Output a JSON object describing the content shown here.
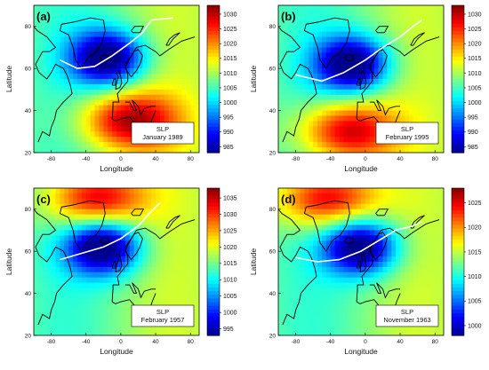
{
  "chart_data": [
    {
      "type": "heatmap",
      "panel_label": "(a)",
      "annotation": [
        "SLP",
        "January 1989"
      ],
      "xlabel": "Longitude",
      "ylabel": "Latitude",
      "x_ticks": [
        "-80",
        "-40",
        "0",
        "40",
        "80"
      ],
      "y_ticks": [
        "20",
        "40",
        "60",
        "80"
      ],
      "xlim": [
        -100,
        90
      ],
      "ylim": [
        20,
        90
      ],
      "colorbar": {
        "ticks": [
          1030,
          1025,
          1020,
          1015,
          1010,
          1005,
          1000,
          995,
          990,
          985
        ],
        "range": [
          983,
          1033
        ]
      },
      "low_center": {
        "lon": -15,
        "lat": 65
      },
      "high_center": {
        "lon": 10,
        "lat": 35
      },
      "jet_axis": [
        [
          -70,
          64
        ],
        [
          -50,
          60
        ],
        [
          -30,
          61
        ],
        [
          -10,
          66
        ],
        [
          10,
          72
        ],
        [
          25,
          77
        ],
        [
          35,
          83
        ],
        [
          60,
          84
        ]
      ]
    },
    {
      "type": "heatmap",
      "panel_label": "(b)",
      "annotation": [
        "SLP",
        "February 1995"
      ],
      "xlabel": "Longitude",
      "ylabel": "Latitude",
      "x_ticks": [
        "-80",
        "-40",
        "0",
        "40",
        "80"
      ],
      "y_ticks": [
        "20",
        "40",
        "60",
        "80"
      ],
      "xlim": [
        -100,
        90
      ],
      "ylim": [
        20,
        90
      ],
      "colorbar": {
        "ticks": [
          1030,
          1025,
          1020,
          1015,
          1010,
          1005,
          1000,
          995,
          990,
          985
        ],
        "range": [
          983,
          1033
        ]
      },
      "low_center": {
        "lon": -15,
        "lat": 62
      },
      "high_center": {
        "lon": -20,
        "lat": 30
      },
      "jet_axis": [
        [
          -80,
          57
        ],
        [
          -50,
          54
        ],
        [
          -25,
          58
        ],
        [
          0,
          64
        ],
        [
          20,
          70
        ],
        [
          40,
          75
        ],
        [
          55,
          80
        ],
        [
          65,
          83
        ]
      ]
    },
    {
      "type": "heatmap",
      "panel_label": "(c)",
      "annotation": [
        "SLP",
        "February 1957"
      ],
      "xlabel": "Longitude",
      "ylabel": "Latitude",
      "x_ticks": [
        "-80",
        "-40",
        "0",
        "40",
        "80"
      ],
      "y_ticks": [
        "20",
        "40",
        "60",
        "80"
      ],
      "xlim": [
        -100,
        90
      ],
      "ylim": [
        20,
        90
      ],
      "colorbar": {
        "ticks": [
          1035,
          1030,
          1025,
          1020,
          1015,
          1010,
          1005,
          1000,
          995
        ],
        "range": [
          993,
          1038
        ]
      },
      "low_center": {
        "lon": -20,
        "lat": 62
      },
      "high_center": {
        "lon": -30,
        "lat": 85
      },
      "jet_axis": [
        [
          -70,
          56
        ],
        [
          -45,
          59
        ],
        [
          -20,
          62
        ],
        [
          0,
          66
        ],
        [
          20,
          72
        ],
        [
          35,
          79
        ],
        [
          45,
          83
        ]
      ]
    },
    {
      "type": "heatmap",
      "panel_label": "(d)",
      "annotation": [
        "SLP",
        "November 1963"
      ],
      "xlabel": "Longitude",
      "ylabel": "Latitude",
      "x_ticks": [
        "-80",
        "-40",
        "0",
        "40",
        "80"
      ],
      "y_ticks": [
        "20",
        "40",
        "60",
        "80"
      ],
      "xlim": [
        -100,
        90
      ],
      "ylim": [
        20,
        90
      ],
      "colorbar": {
        "ticks": [
          1025,
          1020,
          1015,
          1010,
          1005,
          1000
        ],
        "range": [
          998,
          1028
        ]
      },
      "low_center": {
        "lon": -5,
        "lat": 62
      },
      "high_center": {
        "lon": -45,
        "lat": 85
      },
      "jet_axis": [
        [
          -80,
          57
        ],
        [
          -55,
          55
        ],
        [
          -30,
          56
        ],
        [
          -5,
          60
        ],
        [
          15,
          65
        ],
        [
          35,
          70
        ],
        [
          55,
          72
        ],
        [
          65,
          74
        ]
      ]
    }
  ],
  "colors": {
    "jet": [
      "#00008f",
      "#0000ff",
      "#0080ff",
      "#00ffff",
      "#80ff80",
      "#ffff00",
      "#ff8000",
      "#ff0000",
      "#800000"
    ],
    "contour": "#000000",
    "coast": "#000000",
    "jet_axis_line": "#ffffff"
  }
}
